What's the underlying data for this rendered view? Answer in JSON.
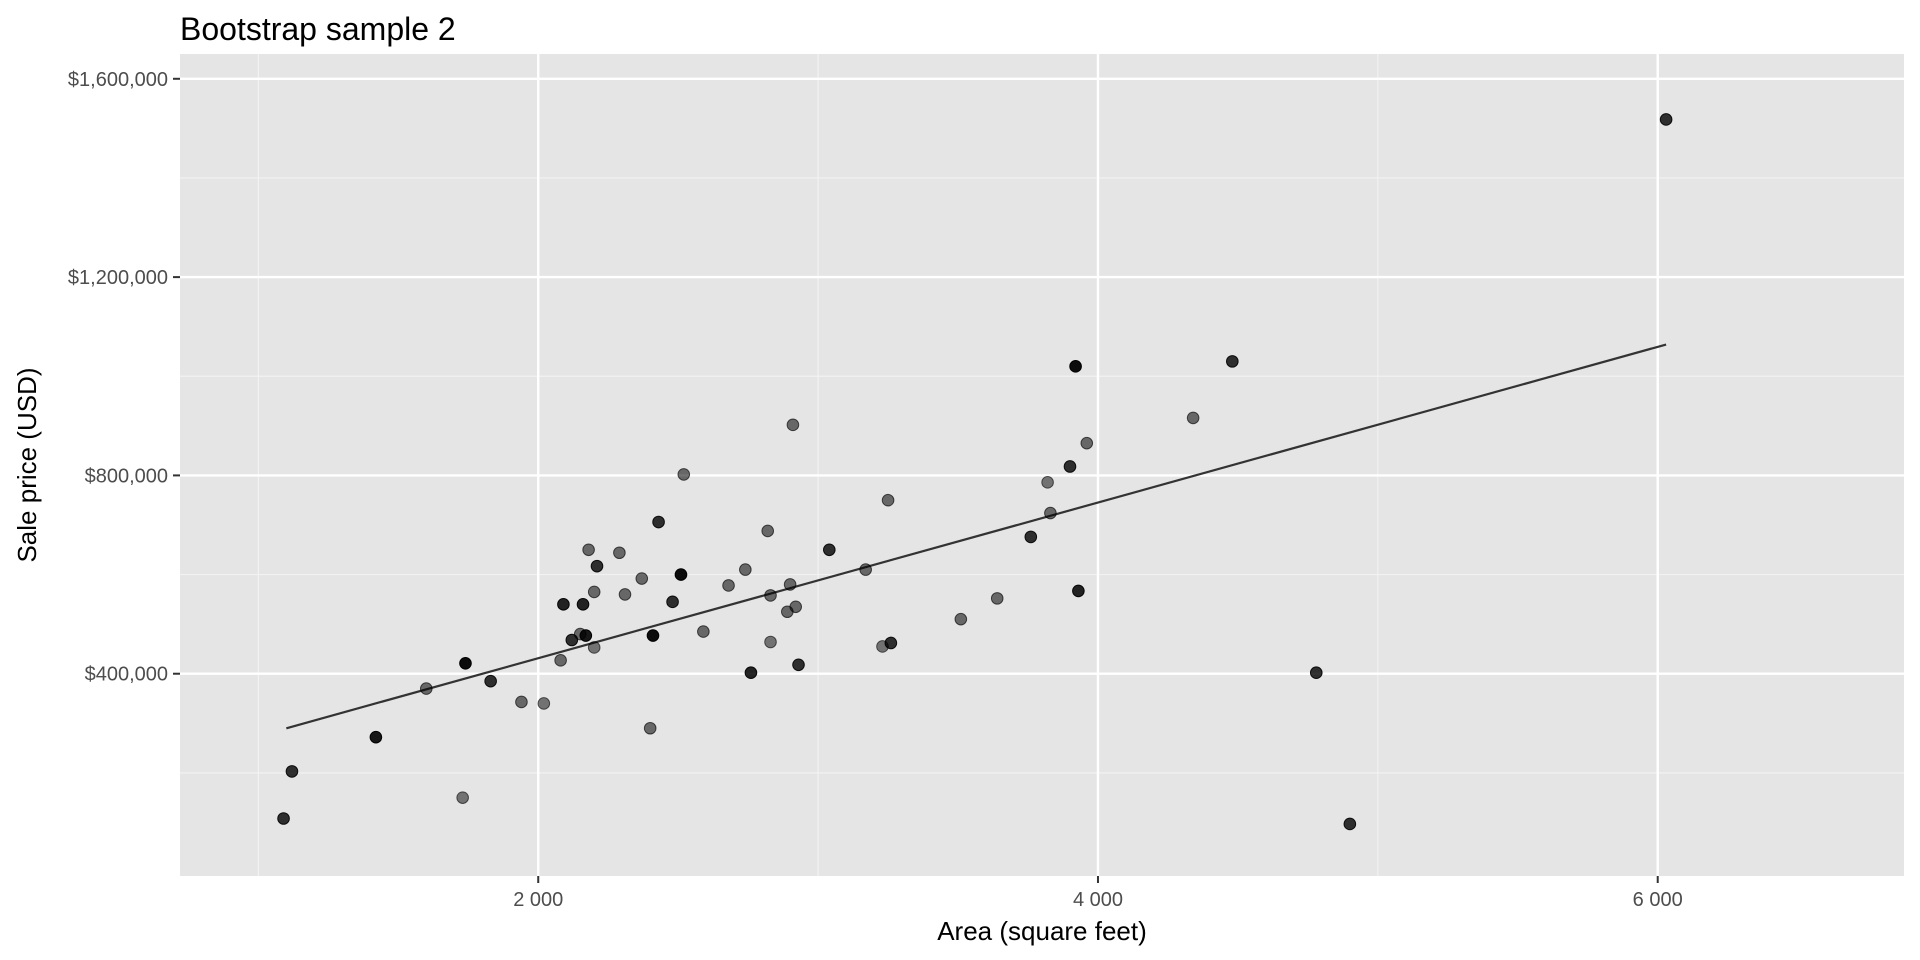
{
  "chart_data": {
    "type": "scatter",
    "title": "Bootstrap sample 2",
    "xlabel": "Area (square feet)",
    "ylabel": "Sale price (USD)",
    "xlim": [
      720,
      6880
    ],
    "ylim": [
      -8000,
      1650000
    ],
    "x_ticks": [
      2000,
      4000,
      6000
    ],
    "x_tick_labels": [
      "2 000",
      "4 000",
      "6 000"
    ],
    "x_minor_ticks": [
      1000,
      3000,
      5000
    ],
    "y_ticks": [
      400000,
      800000,
      1200000,
      1600000
    ],
    "y_tick_labels": [
      "$400,000",
      "$800,000",
      "$1,200,000",
      "$1,600,000"
    ],
    "y_minor_ticks": [
      200000,
      600000,
      1000000,
      1400000
    ],
    "grid": true,
    "panel_background": "#e5e5e5",
    "point_color": "#000000",
    "line_color": "#333333",
    "fit_line": {
      "x": [
        1100,
        6030
      ],
      "y": [
        290000,
        1064000
      ]
    },
    "points": {
      "x": [
        1090,
        1120,
        1420,
        1600,
        1730,
        1740,
        1830,
        1940,
        2020,
        2080,
        2090,
        2120,
        2150,
        2160,
        2170,
        2180,
        2200,
        2200,
        2210,
        2290,
        2310,
        2370,
        2400,
        2410,
        2430,
        2480,
        2510,
        2520,
        2590,
        2680,
        2740,
        2760,
        2820,
        2830,
        2830,
        2890,
        2900,
        2910,
        2920,
        2930,
        3040,
        3170,
        3230,
        3250,
        3260,
        3510,
        3640,
        3760,
        3820,
        3830,
        3900,
        3920,
        3930,
        3960,
        4340,
        4480,
        4780,
        4900,
        6030
      ],
      "y": [
        108000,
        203000,
        272000,
        370000,
        150000,
        421000,
        385000,
        343000,
        340000,
        427000,
        540000,
        468000,
        480000,
        540000,
        477000,
        650000,
        453000,
        565000,
        617000,
        644000,
        560000,
        592000,
        290000,
        477000,
        706000,
        545000,
        600000,
        802000,
        485000,
        578000,
        610000,
        402000,
        688000,
        558000,
        464000,
        525000,
        580000,
        902000,
        535000,
        418000,
        650000,
        610000,
        455000,
        750000,
        462000,
        510000,
        552000,
        676000,
        786000,
        724000,
        818000,
        1020000,
        567000,
        865000,
        916000,
        1030000,
        402000,
        97000,
        1518000
      ],
      "alpha": [
        0.8,
        0.8,
        0.9,
        0.55,
        0.5,
        0.95,
        0.8,
        0.55,
        0.5,
        0.55,
        0.85,
        0.8,
        0.55,
        0.85,
        0.9,
        0.55,
        0.5,
        0.55,
        0.8,
        0.55,
        0.55,
        0.55,
        0.55,
        0.95,
        0.8,
        0.8,
        0.95,
        0.55,
        0.55,
        0.55,
        0.55,
        0.85,
        0.55,
        0.55,
        0.5,
        0.55,
        0.55,
        0.55,
        0.55,
        0.8,
        0.8,
        0.55,
        0.5,
        0.55,
        0.8,
        0.55,
        0.55,
        0.8,
        0.5,
        0.55,
        0.8,
        0.95,
        0.85,
        0.55,
        0.55,
        0.8,
        0.8,
        0.8,
        0.8
      ]
    }
  }
}
